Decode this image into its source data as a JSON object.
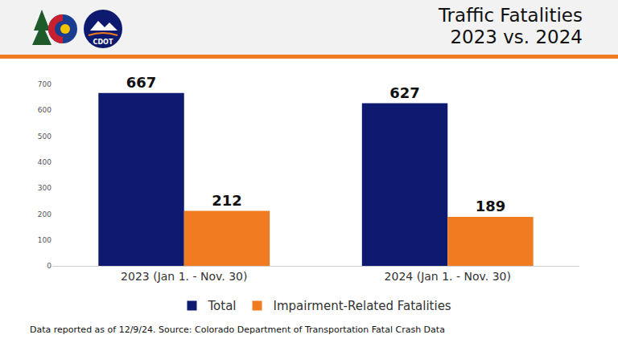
{
  "logo": {
    "text": "CDOT"
  },
  "chart_data": {
    "type": "bar",
    "title": "Traffic Fatalities",
    "subtitle": "2023 vs. 2024",
    "categories": [
      "2023 (Jan 1. - Nov. 30)",
      "2024 (Jan 1. - Nov. 30)"
    ],
    "series": [
      {
        "name": "Total",
        "color": "#0d1a6f",
        "values": [
          667,
          627
        ]
      },
      {
        "name": "Impairment-Related Fatalities",
        "color": "#f07b21",
        "values": [
          212,
          189
        ]
      }
    ],
    "ylim": [
      0,
      700
    ],
    "yticks": [
      0,
      100,
      200,
      300,
      400,
      500,
      600,
      700
    ],
    "grid": false,
    "data_labels": true,
    "legend": "bottom",
    "annotations": [
      "Data reported as of 12/9/24. Source: Colorado Department of Transportation Fatal Crash Data"
    ]
  }
}
